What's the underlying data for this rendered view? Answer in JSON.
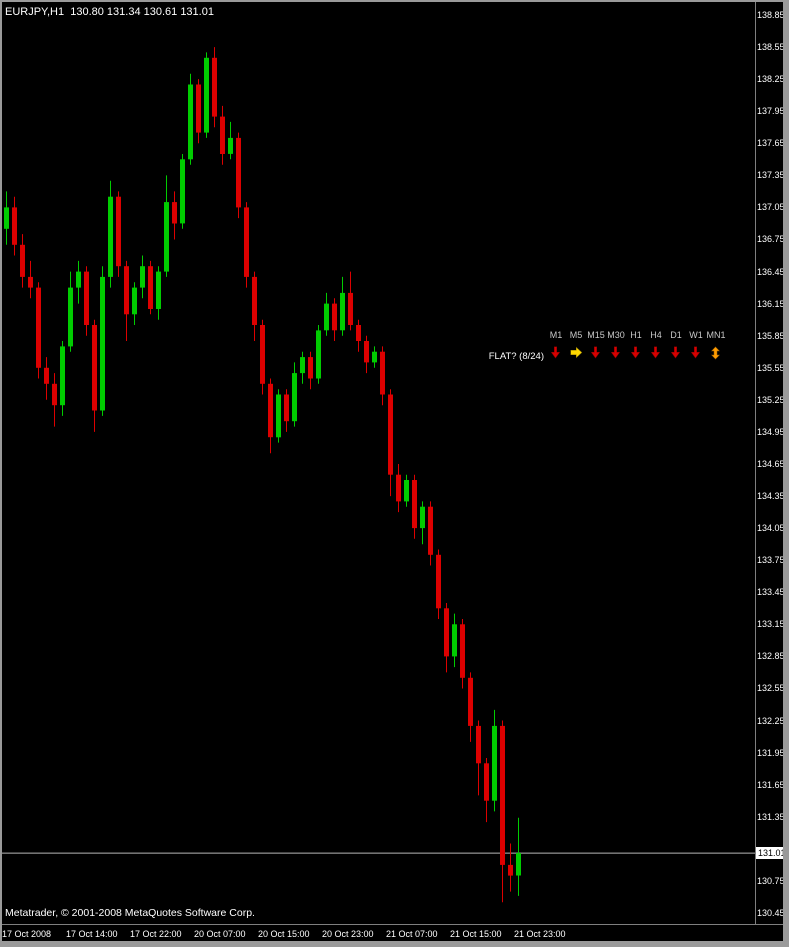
{
  "window": {
    "title_text": "EURJPY,H1  130.80 131.34 130.61 131.01",
    "watermark": "Metatrader, © 2001-2008 MetaQuotes Software Corp."
  },
  "colors": {
    "background": "#000000",
    "frame": "#9A9A9A",
    "up_candle": "#00CC00",
    "down_candle": "#DD0000",
    "axis_text": "#FFFFFF",
    "separator": "#7F7F7F",
    "price_line": "#B8B8B8",
    "badge_bg": "#FFFFFF",
    "badge_text": "#000000"
  },
  "indicator": {
    "label": "FLAT? (8/24)",
    "signals": [
      {
        "timeframe": "M1",
        "direction": "down",
        "color": "#D80000"
      },
      {
        "timeframe": "M5",
        "direction": "right",
        "color": "#FFD800"
      },
      {
        "timeframe": "M15",
        "direction": "down",
        "color": "#D80000"
      },
      {
        "timeframe": "M30",
        "direction": "down",
        "color": "#D80000"
      },
      {
        "timeframe": "H1",
        "direction": "down",
        "color": "#D80000"
      },
      {
        "timeframe": "H4",
        "direction": "down",
        "color": "#D80000"
      },
      {
        "timeframe": "D1",
        "direction": "down",
        "color": "#D80000"
      },
      {
        "timeframe": "W1",
        "direction": "down",
        "color": "#D80000"
      },
      {
        "timeframe": "MN1",
        "direction": "updown",
        "color": "#FF9C00"
      }
    ]
  },
  "chart_data": {
    "type": "candlestick",
    "symbol": "EURJPY",
    "timeframe": "H1",
    "last_candle": {
      "open": 130.8,
      "high": 131.34,
      "low": 130.61,
      "close": 131.01
    },
    "current_price": 131.01,
    "current_price_label": "131.01",
    "y_tick_step": 0.3,
    "ylim": [
      130.45,
      138.85
    ],
    "y_axis_labels": [
      "138.85",
      "138.55",
      "138.25",
      "137.95",
      "137.65",
      "137.35",
      "137.05",
      "136.75",
      "136.45",
      "136.15",
      "135.85",
      "135.55",
      "135.25",
      "134.95",
      "134.65",
      "134.35",
      "134.05",
      "133.75",
      "133.45",
      "133.15",
      "132.85",
      "132.55",
      "132.25",
      "131.95",
      "131.65",
      "131.35",
      "130.75",
      "130.45"
    ],
    "x_axis_labels": [
      {
        "text": "17 Oct 2008",
        "index": 0
      },
      {
        "text": "17 Oct 14:00",
        "index": 8
      },
      {
        "text": "17 Oct 22:00",
        "index": 16
      },
      {
        "text": "20 Oct 07:00",
        "index": 24
      },
      {
        "text": "20 Oct 15:00",
        "index": 32
      },
      {
        "text": "20 Oct 23:00",
        "index": 40
      },
      {
        "text": "21 Oct 07:00",
        "index": 48
      },
      {
        "text": "21 Oct 15:00",
        "index": 56
      },
      {
        "text": "21 Oct 23:00",
        "index": 64
      }
    ],
    "candles": [
      [
        136.85,
        137.2,
        136.7,
        137.05
      ],
      [
        137.05,
        137.15,
        136.6,
        136.7
      ],
      [
        136.7,
        136.8,
        136.3,
        136.4
      ],
      [
        136.4,
        136.55,
        136.2,
        136.3
      ],
      [
        136.3,
        136.35,
        135.45,
        135.55
      ],
      [
        135.55,
        135.65,
        135.25,
        135.4
      ],
      [
        135.4,
        135.5,
        135.0,
        135.2
      ],
      [
        135.2,
        135.8,
        135.1,
        135.75
      ],
      [
        135.75,
        136.45,
        135.7,
        136.3
      ],
      [
        136.3,
        136.55,
        136.15,
        136.45
      ],
      [
        136.45,
        136.5,
        135.85,
        135.95
      ],
      [
        135.95,
        136.0,
        134.95,
        135.15
      ],
      [
        135.15,
        136.5,
        135.1,
        136.4
      ],
      [
        136.4,
        137.3,
        136.3,
        137.15
      ],
      [
        137.15,
        137.2,
        136.4,
        136.5
      ],
      [
        136.5,
        136.55,
        135.8,
        136.05
      ],
      [
        136.05,
        136.35,
        135.95,
        136.3
      ],
      [
        136.3,
        136.6,
        136.2,
        136.5
      ],
      [
        136.5,
        136.55,
        136.05,
        136.1
      ],
      [
        136.1,
        136.5,
        136.0,
        136.45
      ],
      [
        136.45,
        137.35,
        136.4,
        137.1
      ],
      [
        137.1,
        137.2,
        136.75,
        136.9
      ],
      [
        136.9,
        137.55,
        136.85,
        137.5
      ],
      [
        137.5,
        138.3,
        137.45,
        138.2
      ],
      [
        138.2,
        138.25,
        137.65,
        137.75
      ],
      [
        137.75,
        138.5,
        137.7,
        138.45
      ],
      [
        138.45,
        138.55,
        137.8,
        137.9
      ],
      [
        137.9,
        138.0,
        137.45,
        137.55
      ],
      [
        137.55,
        137.85,
        137.5,
        137.7
      ],
      [
        137.7,
        137.75,
        136.95,
        137.05
      ],
      [
        137.05,
        137.1,
        136.3,
        136.4
      ],
      [
        136.4,
        136.45,
        135.8,
        135.95
      ],
      [
        135.95,
        136.0,
        135.3,
        135.4
      ],
      [
        135.4,
        135.45,
        134.75,
        134.9
      ],
      [
        134.9,
        135.35,
        134.85,
        135.3
      ],
      [
        135.3,
        135.35,
        134.95,
        135.05
      ],
      [
        135.05,
        135.6,
        135.0,
        135.5
      ],
      [
        135.5,
        135.7,
        135.4,
        135.65
      ],
      [
        135.65,
        135.7,
        135.35,
        135.45
      ],
      [
        135.45,
        135.95,
        135.4,
        135.9
      ],
      [
        135.9,
        136.25,
        135.85,
        136.15
      ],
      [
        136.15,
        136.2,
        135.8,
        135.9
      ],
      [
        135.9,
        136.4,
        135.85,
        136.25
      ],
      [
        136.25,
        136.45,
        135.9,
        135.95
      ],
      [
        135.95,
        136.0,
        135.7,
        135.8
      ],
      [
        135.8,
        135.85,
        135.5,
        135.6
      ],
      [
        135.6,
        135.75,
        135.55,
        135.7
      ],
      [
        135.7,
        135.75,
        135.2,
        135.3
      ],
      [
        135.3,
        135.35,
        134.35,
        134.55
      ],
      [
        134.55,
        134.65,
        134.2,
        134.3
      ],
      [
        134.3,
        134.55,
        134.25,
        134.5
      ],
      [
        134.5,
        134.55,
        133.95,
        134.05
      ],
      [
        134.05,
        134.3,
        133.9,
        134.25
      ],
      [
        134.25,
        134.3,
        133.7,
        133.8
      ],
      [
        133.8,
        133.85,
        133.2,
        133.3
      ],
      [
        133.3,
        133.35,
        132.7,
        132.85
      ],
      [
        132.85,
        133.25,
        132.75,
        133.15
      ],
      [
        133.15,
        133.2,
        132.55,
        132.65
      ],
      [
        132.65,
        132.7,
        132.05,
        132.2
      ],
      [
        132.2,
        132.25,
        131.55,
        131.85
      ],
      [
        131.85,
        131.9,
        131.3,
        131.5
      ],
      [
        131.5,
        132.35,
        131.4,
        132.2
      ],
      [
        132.2,
        132.25,
        130.55,
        130.9
      ],
      [
        130.9,
        131.1,
        130.65,
        130.8
      ],
      [
        130.8,
        131.34,
        130.61,
        131.01
      ]
    ]
  }
}
